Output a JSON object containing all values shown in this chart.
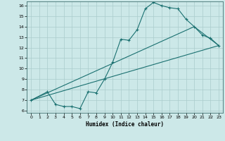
{
  "title": "",
  "xlabel": "Humidex (Indice chaleur)",
  "ylabel": "",
  "bg_color": "#cce8e8",
  "grid_color": "#aacccc",
  "line_color": "#1a7070",
  "xlim": [
    -0.5,
    23.5
  ],
  "ylim": [
    5.8,
    16.4
  ],
  "xticks": [
    0,
    1,
    2,
    3,
    4,
    5,
    6,
    7,
    8,
    9,
    10,
    11,
    12,
    13,
    14,
    15,
    16,
    17,
    18,
    19,
    20,
    21,
    22,
    23
  ],
  "yticks": [
    6,
    7,
    8,
    9,
    10,
    11,
    12,
    13,
    14,
    15,
    16
  ],
  "line2_x": [
    0,
    2,
    3,
    4,
    5,
    6,
    7,
    8,
    9,
    10,
    11,
    12,
    13,
    14,
    15,
    16,
    17,
    18,
    19,
    20,
    21,
    22,
    23
  ],
  "line2_y": [
    7.0,
    7.8,
    6.6,
    6.4,
    6.4,
    6.2,
    7.8,
    7.7,
    9.0,
    10.6,
    12.8,
    12.7,
    13.7,
    15.7,
    16.3,
    16.0,
    15.8,
    15.7,
    14.7,
    14.0,
    13.2,
    12.9,
    12.2
  ],
  "line3_x": [
    0,
    23
  ],
  "line3_y": [
    7.0,
    12.2
  ],
  "line4_x": [
    0,
    20,
    23
  ],
  "line4_y": [
    7.0,
    14.0,
    12.2
  ]
}
